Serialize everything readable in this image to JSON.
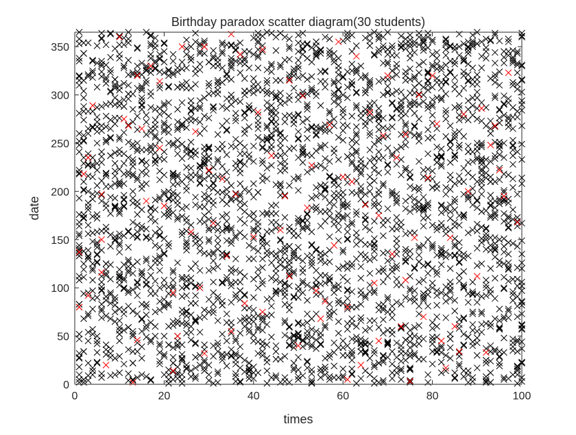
{
  "chart_data": {
    "type": "scatter",
    "title": "Birthday paradox scatter diagram(30 students)",
    "xlabel": "times",
    "ylabel": "date",
    "xlim": [
      0,
      100
    ],
    "ylim": [
      0,
      365
    ],
    "xticks": [
      0,
      20,
      40,
      60,
      80,
      100
    ],
    "yticks": [
      0,
      50,
      100,
      150,
      200,
      250,
      300,
      350
    ],
    "grid": false,
    "legend": "none",
    "marker": "x",
    "students_per_trial": 30,
    "trials": 100,
    "colors": {
      "unique_birthday": "#000000",
      "shared_birthday": "#ff0000",
      "axis": "#262626"
    },
    "series": [
      {
        "values": [
          [
            1,
            5
          ],
          [
            1,
            28
          ],
          [
            1,
            52
          ],
          [
            1,
            80
          ],
          [
            1,
            108
          ],
          [
            1,
            136
          ],
          [
            1,
            141
          ],
          [
            1,
            164
          ],
          [
            1,
            193
          ],
          [
            1,
            222
          ],
          [
            1,
            252
          ],
          [
            1,
            281
          ],
          [
            1,
            310
          ],
          [
            1,
            338
          ],
          [
            10,
            12
          ],
          [
            10,
            45
          ],
          [
            10,
            78
          ],
          [
            10,
            111
          ],
          [
            10,
            144
          ],
          [
            10,
            177
          ],
          [
            10,
            210
          ],
          [
            10,
            243
          ],
          [
            10,
            276
          ],
          [
            10,
            309
          ],
          [
            10,
            342
          ],
          [
            10,
            361
          ],
          [
            25,
            20
          ],
          [
            25,
            61
          ],
          [
            25,
            102
          ],
          [
            25,
            143
          ],
          [
            25,
            184
          ],
          [
            25,
            225
          ],
          [
            25,
            266
          ],
          [
            25,
            307
          ],
          [
            25,
            348
          ],
          [
            50,
            8
          ],
          [
            50,
            49
          ],
          [
            50,
            90
          ],
          [
            50,
            131
          ],
          [
            50,
            172
          ],
          [
            50,
            213
          ],
          [
            50,
            254
          ],
          [
            50,
            295
          ],
          [
            50,
            336
          ],
          [
            75,
            15
          ],
          [
            75,
            56
          ],
          [
            75,
            97
          ],
          [
            75,
            138
          ],
          [
            75,
            179
          ],
          [
            75,
            220
          ],
          [
            75,
            261
          ],
          [
            75,
            302
          ],
          [
            75,
            343
          ],
          [
            100,
            3
          ],
          [
            100,
            44
          ],
          [
            100,
            85
          ],
          [
            100,
            126
          ],
          [
            100,
            167
          ],
          [
            100,
            208
          ],
          [
            100,
            249
          ],
          [
            100,
            290
          ],
          [
            100,
            331
          ],
          [
            100,
            360
          ]
        ]
      },
      {
        "values": [
          [
            1,
            80
          ],
          [
            1,
            137
          ],
          [
            2,
            218
          ],
          [
            3,
            92
          ],
          [
            3,
            235
          ],
          [
            4,
            289
          ],
          [
            6,
            116
          ],
          [
            6,
            150
          ],
          [
            6,
            197
          ],
          [
            7,
            20
          ],
          [
            10,
            360
          ],
          [
            11,
            275
          ],
          [
            12,
            268
          ],
          [
            13,
            2
          ],
          [
            14,
            46
          ],
          [
            14,
            320
          ],
          [
            15,
            265
          ],
          [
            16,
            190
          ],
          [
            17,
            330
          ],
          [
            19,
            245
          ],
          [
            19,
            314
          ],
          [
            20,
            185
          ],
          [
            22,
            14
          ],
          [
            22,
            95
          ],
          [
            23,
            50
          ],
          [
            24,
            350
          ],
          [
            26,
            158
          ],
          [
            27,
            262
          ],
          [
            28,
            100
          ],
          [
            29,
            32
          ],
          [
            29,
            350
          ],
          [
            30,
            222
          ],
          [
            31,
            167
          ],
          [
            33,
            213
          ],
          [
            34,
            133
          ],
          [
            35,
            363
          ],
          [
            35,
            55
          ],
          [
            36,
            197
          ],
          [
            37,
            342
          ],
          [
            38,
            84
          ],
          [
            40,
            153
          ],
          [
            41,
            282
          ],
          [
            42,
            75
          ],
          [
            42,
            347
          ],
          [
            44,
            237
          ],
          [
            46,
            160
          ],
          [
            47,
            195
          ],
          [
            48,
            112
          ],
          [
            48,
            315
          ],
          [
            50,
            40
          ],
          [
            51,
            299
          ],
          [
            52,
            183
          ],
          [
            53,
            227
          ],
          [
            54,
            97
          ],
          [
            55,
            68
          ],
          [
            56,
            86
          ],
          [
            57,
            269
          ],
          [
            58,
            144
          ],
          [
            59,
            355
          ],
          [
            60,
            215
          ],
          [
            61,
            5
          ],
          [
            61,
            80
          ],
          [
            62,
            210
          ],
          [
            63,
            340
          ],
          [
            64,
            20
          ],
          [
            65,
            186
          ],
          [
            66,
            282
          ],
          [
            67,
            105
          ],
          [
            68,
            45
          ],
          [
            68,
            175
          ],
          [
            69,
            258
          ],
          [
            70,
            320
          ],
          [
            71,
            135
          ],
          [
            72,
            235
          ],
          [
            73,
            60
          ],
          [
            74,
            108
          ],
          [
            74,
            259
          ],
          [
            75,
            3
          ],
          [
            76,
            152
          ],
          [
            77,
            300
          ],
          [
            78,
            70
          ],
          [
            79,
            214
          ],
          [
            80,
            320
          ],
          [
            81,
            270
          ],
          [
            82,
            45
          ],
          [
            83,
            17
          ],
          [
            84,
            152
          ],
          [
            85,
            60
          ],
          [
            86,
            34
          ],
          [
            87,
            280
          ],
          [
            88,
            200
          ],
          [
            90,
            112
          ],
          [
            91,
            286
          ],
          [
            92,
            33
          ],
          [
            93,
            248
          ],
          [
            94,
            268
          ],
          [
            95,
            222
          ],
          [
            96,
            195
          ],
          [
            97,
            323
          ],
          [
            99,
            168
          ]
        ]
      }
    ]
  }
}
